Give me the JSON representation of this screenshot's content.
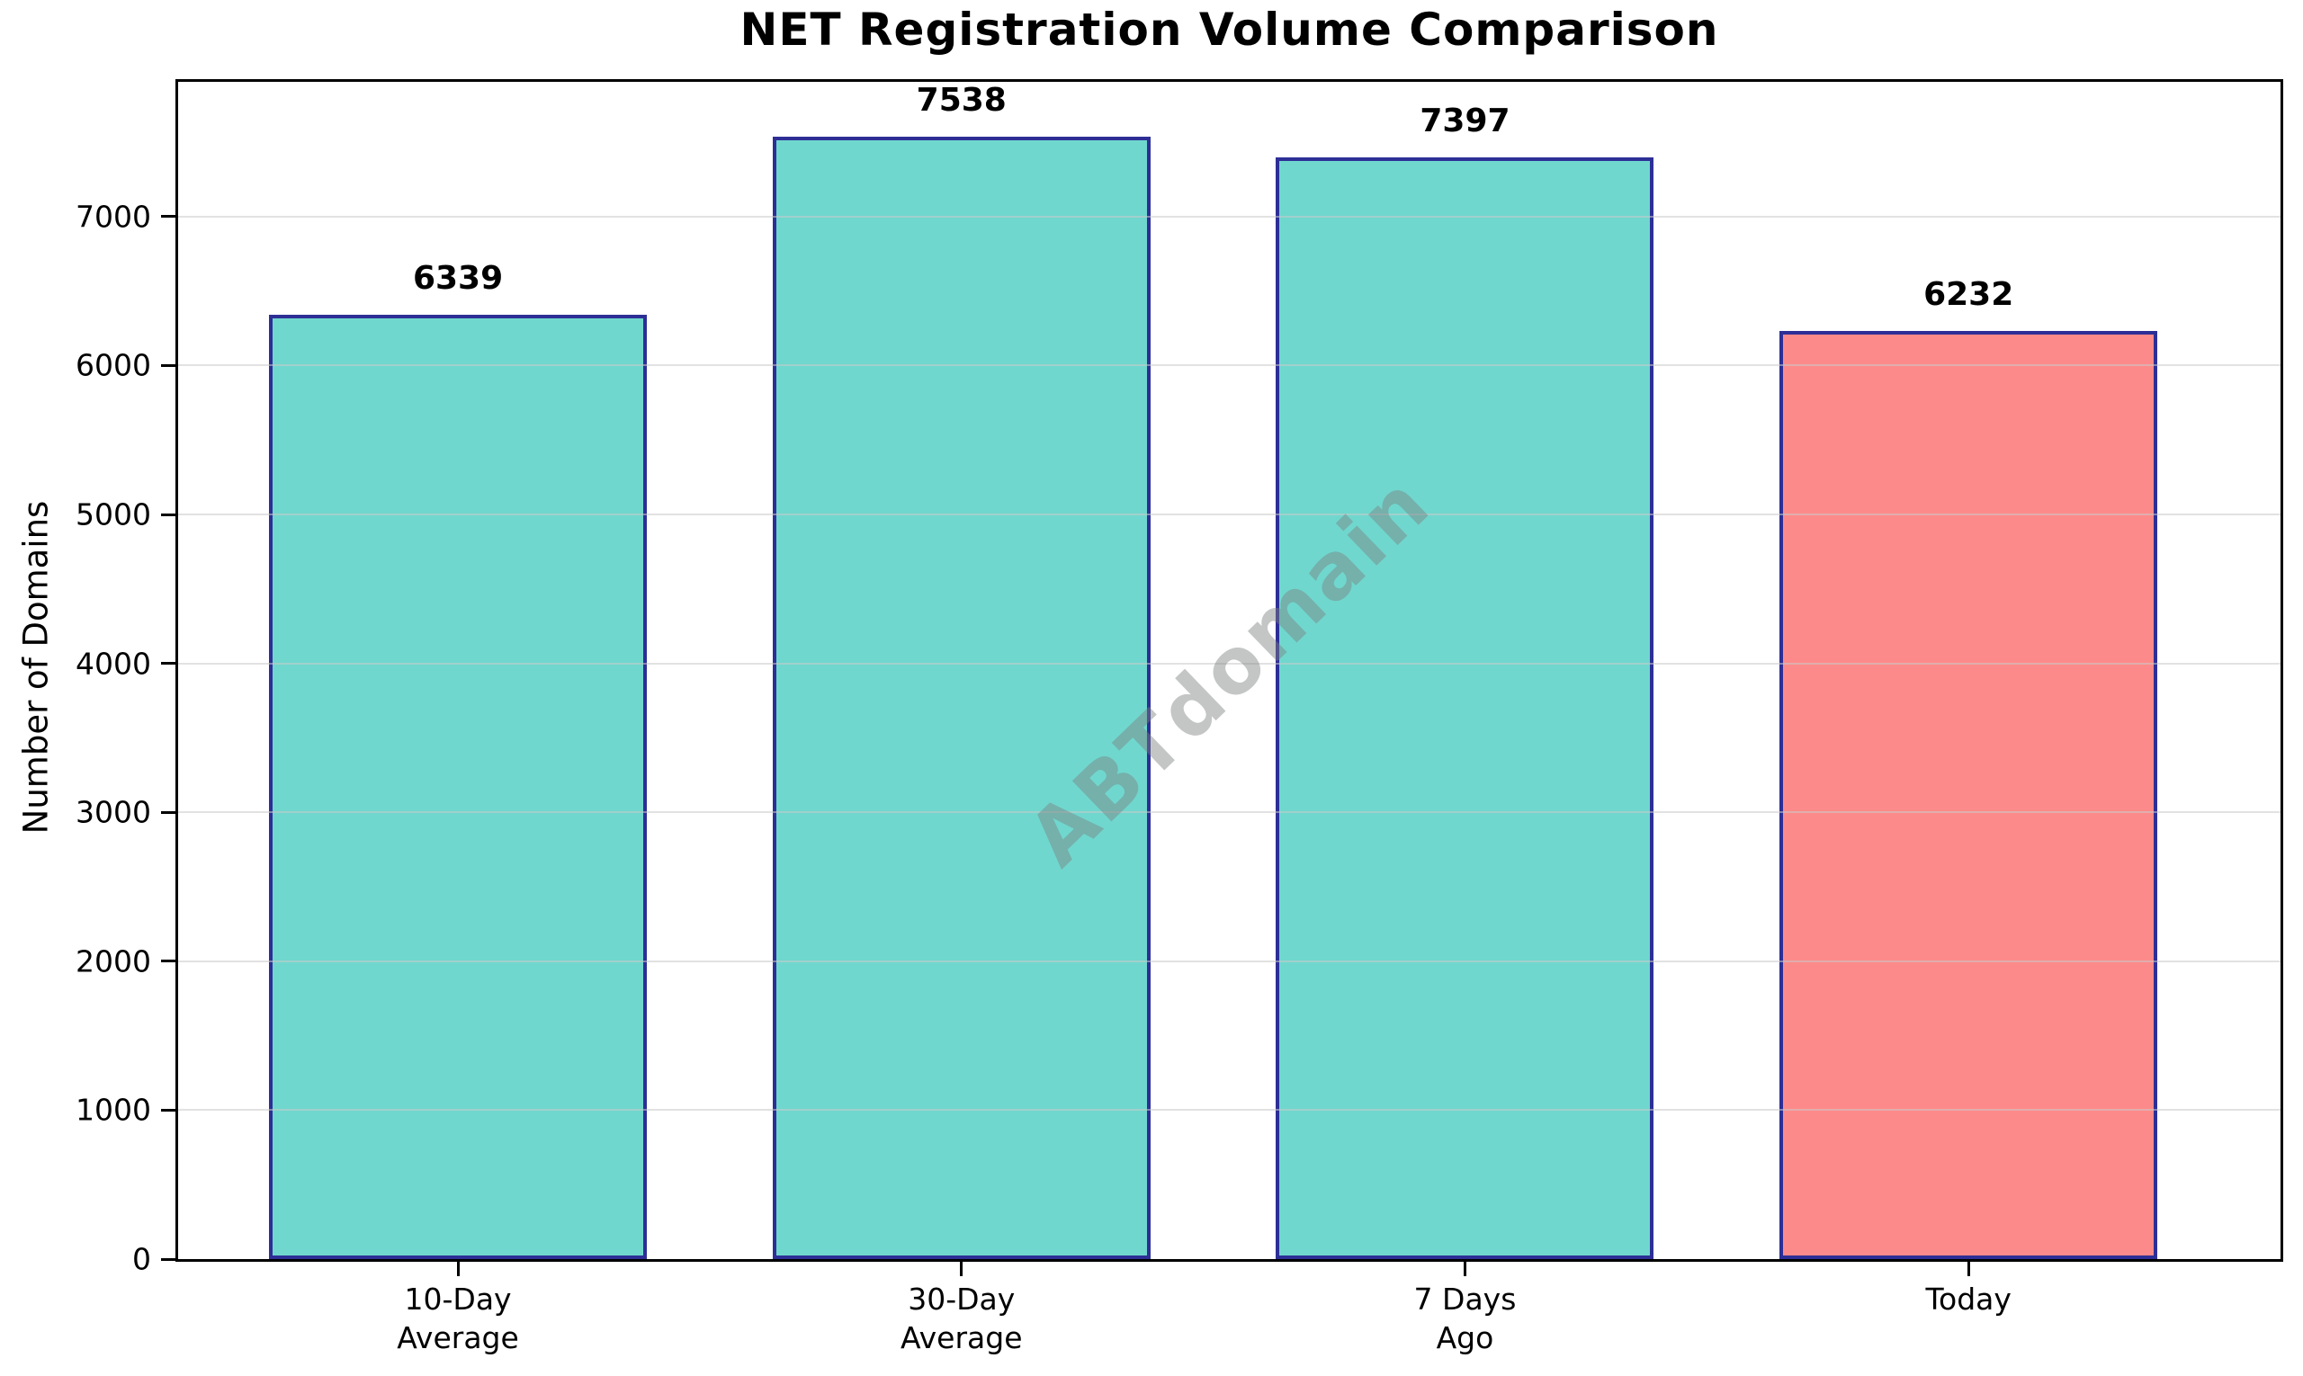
{
  "chart_data": {
    "type": "bar",
    "title": "NET Registration Volume Comparison",
    "ylabel": "Number of Domains",
    "xlabel": "",
    "categories": [
      "10-Day\nAverage",
      "30-Day\nAverage",
      "7 Days\nAgo",
      "Today"
    ],
    "values": [
      6339,
      7538,
      7397,
      6232
    ],
    "value_labels": [
      "6339",
      "7538",
      "7397",
      "6232"
    ],
    "bar_colors": [
      "#70D7CE",
      "#70D7CE",
      "#70D7CE",
      "#FD8A8A"
    ],
    "bar_edge_color": "#2D2F96",
    "yticks": [
      0,
      1000,
      2000,
      3000,
      4000,
      5000,
      6000,
      7000
    ],
    "ylim": [
      0,
      7905
    ],
    "grid": "horizontal-light-gray",
    "legend": "none",
    "watermark": "ABTdomain",
    "background_color": "#FFFFFF",
    "spine_color": "#000000"
  }
}
